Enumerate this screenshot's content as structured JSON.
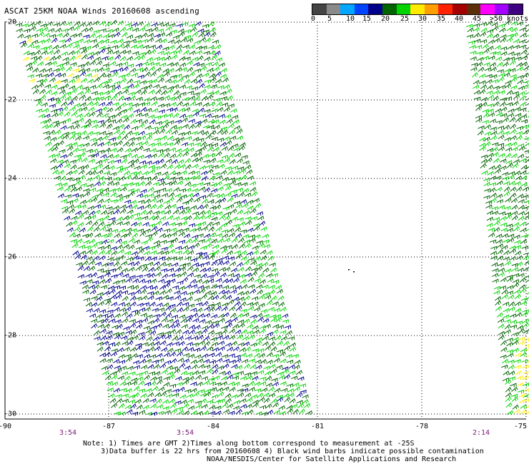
{
  "title": "ASCAT 25KM NOAA Winds 20160608 ascending",
  "legend": {
    "swatches": [
      {
        "color": "#444444"
      },
      {
        "color": "#8a8a8a"
      },
      {
        "color": "#00a6ff"
      },
      {
        "color": "#0044ff"
      },
      {
        "color": "#00008b"
      },
      {
        "color": "#006400"
      },
      {
        "color": "#00d400"
      },
      {
        "color": "#ffea00"
      },
      {
        "color": "#ff9e00"
      },
      {
        "color": "#ff2200"
      },
      {
        "color": "#a50000"
      },
      {
        "color": "#5c2e0a"
      },
      {
        "color": "#ff00ff"
      },
      {
        "color": "#a400ff"
      },
      {
        "color": "#3c0080"
      }
    ],
    "labels": [
      "0",
      "5",
      "10",
      "15",
      "20",
      "25",
      "30",
      "35",
      "40",
      "45",
      ">50 knots"
    ]
  },
  "lat_labels": [
    "-20",
    "-22",
    "-24",
    "-26",
    "-28",
    "-30"
  ],
  "lon_labels": [
    "-90",
    "-87",
    "-84",
    "-81",
    "-78",
    "-75"
  ],
  "time_labels": [
    "3:54",
    "3:54",
    "2:14"
  ],
  "notes": [
    "Note: 1) Times are GMT 2)Times along bottom correspond to measurement at -25S",
    "3)Data buffer is 22 hrs from 20160608 4) Black wind barbs indicate possible contamination",
    "NOAA/NESDIS/Center for Satellite Applications and Research"
  ]
}
